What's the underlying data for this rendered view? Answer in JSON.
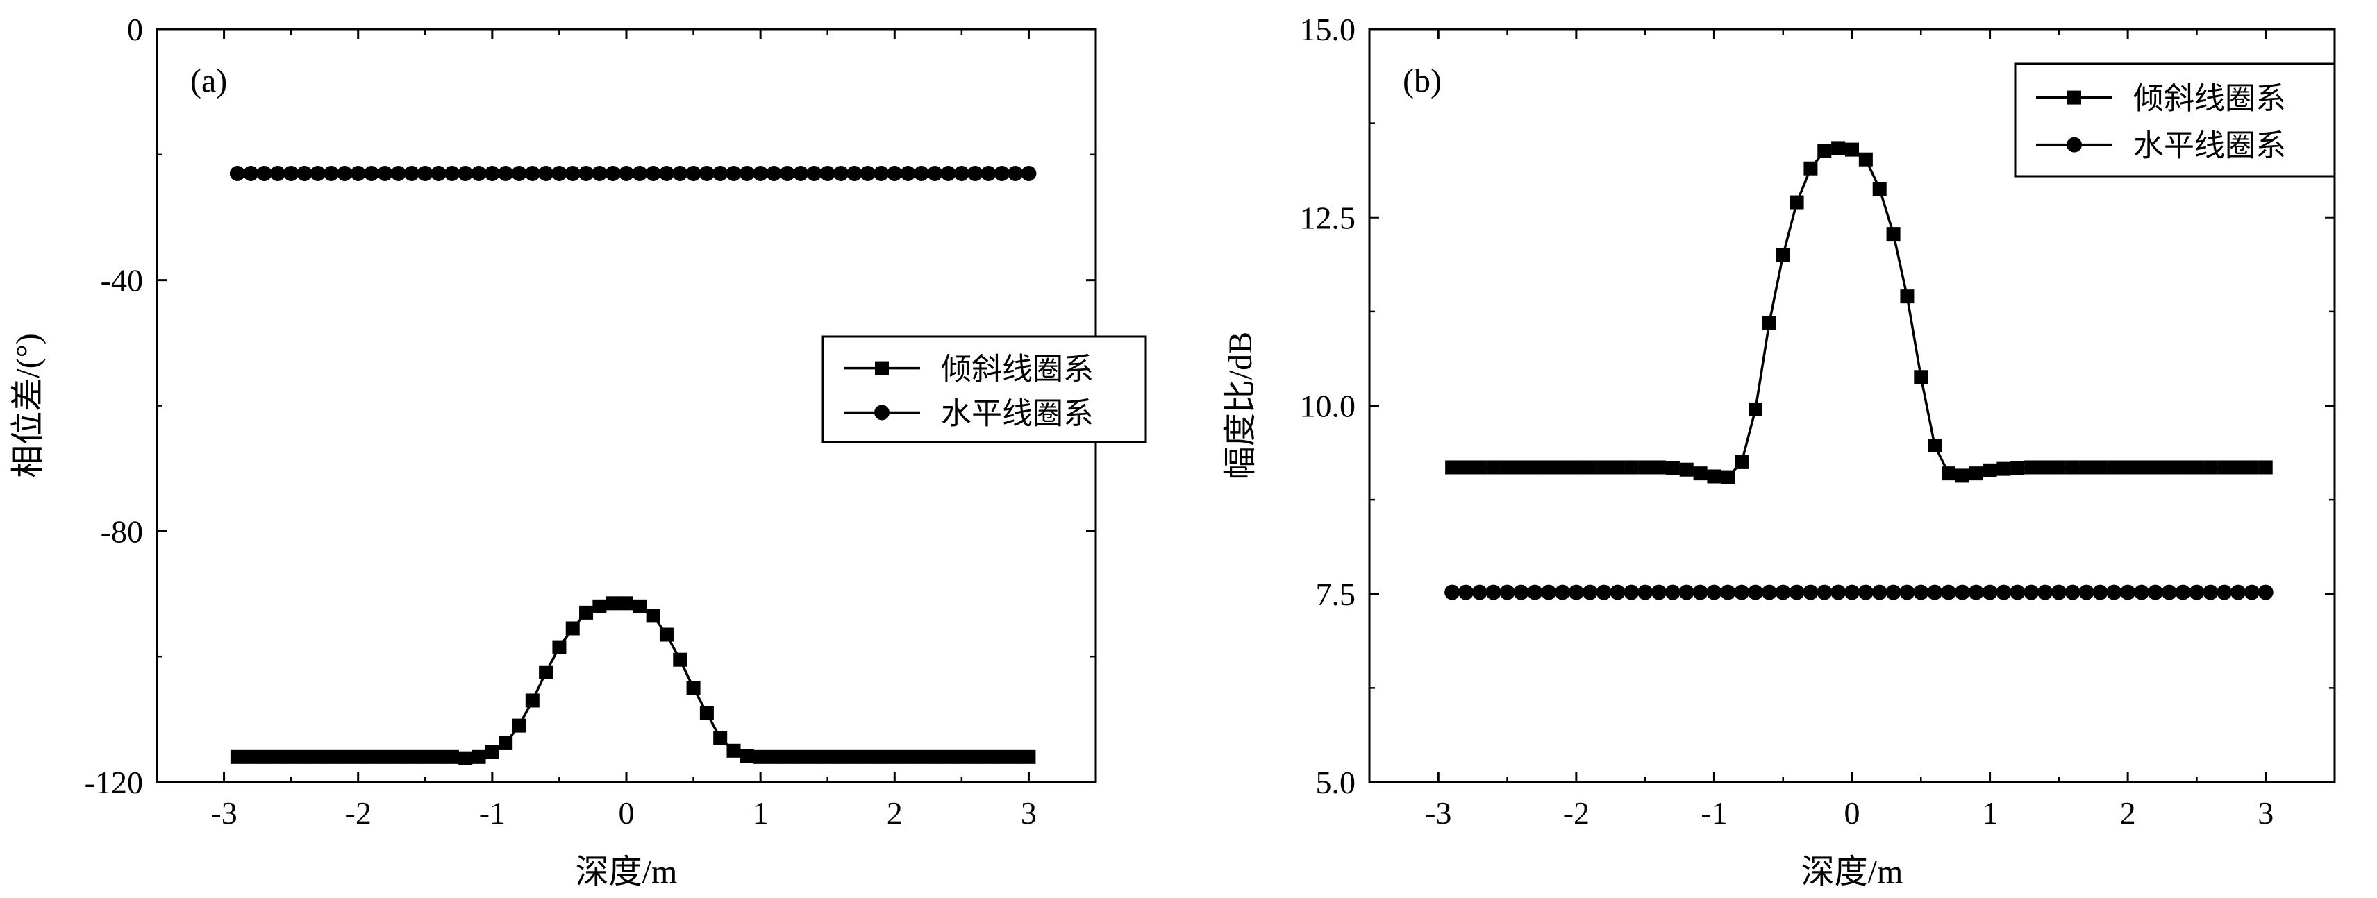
{
  "chart_data": [
    {
      "type": "line",
      "panel_label": "(a)",
      "xlabel": "深度/m",
      "ylabel": "相位差/(°)",
      "xlim": [
        -3.5,
        3.5
      ],
      "ylim": [
        -120,
        0
      ],
      "xticks": [
        -3,
        -2,
        -1,
        0,
        1,
        2,
        3
      ],
      "xtick_labels": [
        "-3",
        "-2",
        "-1",
        "0",
        "1",
        "2",
        "3"
      ],
      "yticks": [
        -120,
        -80,
        -40,
        0
      ],
      "ytick_labels": [
        "-120",
        "-80",
        "-40",
        "0"
      ],
      "grid": false,
      "legend_position": "center-right",
      "series": [
        {
          "name": "倾斜线圈系",
          "marker": "square",
          "points": [
            [
              -2.9,
              -116
            ],
            [
              -2.8,
              -116
            ],
            [
              -2.7,
              -116
            ],
            [
              -2.6,
              -116
            ],
            [
              -2.5,
              -116
            ],
            [
              -2.4,
              -116
            ],
            [
              -2.3,
              -116
            ],
            [
              -2.2,
              -116
            ],
            [
              -2.1,
              -116
            ],
            [
              -2.0,
              -116
            ],
            [
              -1.9,
              -116
            ],
            [
              -1.8,
              -116
            ],
            [
              -1.7,
              -116
            ],
            [
              -1.6,
              -116
            ],
            [
              -1.5,
              -116
            ],
            [
              -1.4,
              -116
            ],
            [
              -1.3,
              -116
            ],
            [
              -1.2,
              -116.2
            ],
            [
              -1.1,
              -116
            ],
            [
              -1.0,
              -115.2
            ],
            [
              -0.9,
              -113.8
            ],
            [
              -0.8,
              -111
            ],
            [
              -0.7,
              -107
            ],
            [
              -0.6,
              -102.5
            ],
            [
              -0.5,
              -98.5
            ],
            [
              -0.4,
              -95.5
            ],
            [
              -0.3,
              -93
            ],
            [
              -0.2,
              -92
            ],
            [
              -0.1,
              -91.5
            ],
            [
              0.0,
              -91.5
            ],
            [
              0.1,
              -92
            ],
            [
              0.2,
              -93.5
            ],
            [
              0.3,
              -96.5
            ],
            [
              0.4,
              -100.5
            ],
            [
              0.5,
              -105
            ],
            [
              0.6,
              -109
            ],
            [
              0.7,
              -113
            ],
            [
              0.8,
              -115
            ],
            [
              0.9,
              -115.8
            ],
            [
              1.0,
              -116
            ],
            [
              1.1,
              -116
            ],
            [
              1.2,
              -116
            ],
            [
              1.3,
              -116
            ],
            [
              1.4,
              -116
            ],
            [
              1.5,
              -116
            ],
            [
              1.6,
              -116
            ],
            [
              1.7,
              -116
            ],
            [
              1.8,
              -116
            ],
            [
              1.9,
              -116
            ],
            [
              2.0,
              -116
            ],
            [
              2.1,
              -116
            ],
            [
              2.2,
              -116
            ],
            [
              2.3,
              -116
            ],
            [
              2.4,
              -116
            ],
            [
              2.5,
              -116
            ],
            [
              2.6,
              -116
            ],
            [
              2.7,
              -116
            ],
            [
              2.8,
              -116
            ],
            [
              2.9,
              -116
            ],
            [
              3.0,
              -116
            ]
          ]
        },
        {
          "name": "水平线圈系",
          "marker": "circle",
          "points": [
            [
              -2.9,
              -23
            ],
            [
              -2.8,
              -23
            ],
            [
              -2.7,
              -23
            ],
            [
              -2.6,
              -23
            ],
            [
              -2.5,
              -23
            ],
            [
              -2.4,
              -23
            ],
            [
              -2.3,
              -23
            ],
            [
              -2.2,
              -23
            ],
            [
              -2.1,
              -23
            ],
            [
              -2.0,
              -23
            ],
            [
              -1.9,
              -23
            ],
            [
              -1.8,
              -23
            ],
            [
              -1.7,
              -23
            ],
            [
              -1.6,
              -23
            ],
            [
              -1.5,
              -23
            ],
            [
              -1.4,
              -23
            ],
            [
              -1.3,
              -23
            ],
            [
              -1.2,
              -23
            ],
            [
              -1.1,
              -23
            ],
            [
              -1.0,
              -23
            ],
            [
              -0.9,
              -23
            ],
            [
              -0.8,
              -23
            ],
            [
              -0.7,
              -23
            ],
            [
              -0.6,
              -23
            ],
            [
              -0.5,
              -23
            ],
            [
              -0.4,
              -23
            ],
            [
              -0.3,
              -23
            ],
            [
              -0.2,
              -23
            ],
            [
              -0.1,
              -23
            ],
            [
              0.0,
              -23
            ],
            [
              0.1,
              -23
            ],
            [
              0.2,
              -23
            ],
            [
              0.3,
              -23
            ],
            [
              0.4,
              -23
            ],
            [
              0.5,
              -23
            ],
            [
              0.6,
              -23
            ],
            [
              0.7,
              -23
            ],
            [
              0.8,
              -23
            ],
            [
              0.9,
              -23
            ],
            [
              1.0,
              -23
            ],
            [
              1.1,
              -23
            ],
            [
              1.2,
              -23
            ],
            [
              1.3,
              -23
            ],
            [
              1.4,
              -23
            ],
            [
              1.5,
              -23
            ],
            [
              1.6,
              -23
            ],
            [
              1.7,
              -23
            ],
            [
              1.8,
              -23
            ],
            [
              1.9,
              -23
            ],
            [
              2.0,
              -23
            ],
            [
              2.1,
              -23
            ],
            [
              2.2,
              -23
            ],
            [
              2.3,
              -23
            ],
            [
              2.4,
              -23
            ],
            [
              2.5,
              -23
            ],
            [
              2.6,
              -23
            ],
            [
              2.7,
              -23
            ],
            [
              2.8,
              -23
            ],
            [
              2.9,
              -23
            ],
            [
              3.0,
              -23
            ]
          ]
        }
      ]
    },
    {
      "type": "line",
      "panel_label": "(b)",
      "xlabel": "深度/m",
      "ylabel": "幅度比/dB",
      "xlim": [
        -3.5,
        3.5
      ],
      "ylim": [
        5.0,
        15.0
      ],
      "xticks": [
        -3,
        -2,
        -1,
        0,
        1,
        2,
        3
      ],
      "xtick_labels": [
        "-3",
        "-2",
        "-1",
        "0",
        "1",
        "2",
        "3"
      ],
      "yticks": [
        5.0,
        7.5,
        10.0,
        12.5,
        15.0
      ],
      "ytick_labels": [
        "5.0",
        "7.5",
        "10.0",
        "12.5",
        "15.0"
      ],
      "grid": false,
      "legend_position": "top-right",
      "series": [
        {
          "name": "倾斜线圈系",
          "marker": "square",
          "points": [
            [
              -2.9,
              9.18
            ],
            [
              -2.8,
              9.18
            ],
            [
              -2.7,
              9.18
            ],
            [
              -2.6,
              9.18
            ],
            [
              -2.5,
              9.18
            ],
            [
              -2.4,
              9.18
            ],
            [
              -2.3,
              9.18
            ],
            [
              -2.2,
              9.18
            ],
            [
              -2.1,
              9.18
            ],
            [
              -2.0,
              9.18
            ],
            [
              -1.9,
              9.18
            ],
            [
              -1.8,
              9.18
            ],
            [
              -1.7,
              9.18
            ],
            [
              -1.6,
              9.18
            ],
            [
              -1.5,
              9.18
            ],
            [
              -1.4,
              9.18
            ],
            [
              -1.3,
              9.17
            ],
            [
              -1.2,
              9.15
            ],
            [
              -1.1,
              9.1
            ],
            [
              -1.0,
              9.06
            ],
            [
              -0.9,
              9.05
            ],
            [
              -0.8,
              9.25
            ],
            [
              -0.7,
              9.95
            ],
            [
              -0.6,
              11.1
            ],
            [
              -0.5,
              12.0
            ],
            [
              -0.4,
              12.7
            ],
            [
              -0.3,
              13.15
            ],
            [
              -0.2,
              13.38
            ],
            [
              -0.1,
              13.42
            ],
            [
              0.0,
              13.4
            ],
            [
              0.1,
              13.27
            ],
            [
              0.2,
              12.88
            ],
            [
              0.3,
              12.28
            ],
            [
              0.4,
              11.45
            ],
            [
              0.5,
              10.38
            ],
            [
              0.6,
              9.47
            ],
            [
              0.7,
              9.1
            ],
            [
              0.8,
              9.07
            ],
            [
              0.9,
              9.1
            ],
            [
              1.0,
              9.14
            ],
            [
              1.1,
              9.16
            ],
            [
              1.2,
              9.17
            ],
            [
              1.3,
              9.18
            ],
            [
              1.4,
              9.18
            ],
            [
              1.5,
              9.18
            ],
            [
              1.6,
              9.18
            ],
            [
              1.7,
              9.18
            ],
            [
              1.8,
              9.18
            ],
            [
              1.9,
              9.18
            ],
            [
              2.0,
              9.18
            ],
            [
              2.1,
              9.18
            ],
            [
              2.2,
              9.18
            ],
            [
              2.3,
              9.18
            ],
            [
              2.4,
              9.18
            ],
            [
              2.5,
              9.18
            ],
            [
              2.6,
              9.18
            ],
            [
              2.7,
              9.18
            ],
            [
              2.8,
              9.18
            ],
            [
              2.9,
              9.18
            ],
            [
              3.0,
              9.18
            ]
          ]
        },
        {
          "name": "水平线圈系",
          "marker": "circle",
          "points": [
            [
              -2.9,
              7.52
            ],
            [
              -2.8,
              7.52
            ],
            [
              -2.7,
              7.52
            ],
            [
              -2.6,
              7.52
            ],
            [
              -2.5,
              7.52
            ],
            [
              -2.4,
              7.52
            ],
            [
              -2.3,
              7.52
            ],
            [
              -2.2,
              7.52
            ],
            [
              -2.1,
              7.52
            ],
            [
              -2.0,
              7.52
            ],
            [
              -1.9,
              7.52
            ],
            [
              -1.8,
              7.52
            ],
            [
              -1.7,
              7.52
            ],
            [
              -1.6,
              7.52
            ],
            [
              -1.5,
              7.52
            ],
            [
              -1.4,
              7.52
            ],
            [
              -1.3,
              7.52
            ],
            [
              -1.2,
              7.52
            ],
            [
              -1.1,
              7.52
            ],
            [
              -1.0,
              7.52
            ],
            [
              -0.9,
              7.52
            ],
            [
              -0.8,
              7.52
            ],
            [
              -0.7,
              7.52
            ],
            [
              -0.6,
              7.52
            ],
            [
              -0.5,
              7.52
            ],
            [
              -0.4,
              7.52
            ],
            [
              -0.3,
              7.52
            ],
            [
              -0.2,
              7.52
            ],
            [
              -0.1,
              7.52
            ],
            [
              0.0,
              7.52
            ],
            [
              0.1,
              7.52
            ],
            [
              0.2,
              7.52
            ],
            [
              0.3,
              7.52
            ],
            [
              0.4,
              7.52
            ],
            [
              0.5,
              7.52
            ],
            [
              0.6,
              7.52
            ],
            [
              0.7,
              7.52
            ],
            [
              0.8,
              7.52
            ],
            [
              0.9,
              7.52
            ],
            [
              1.0,
              7.52
            ],
            [
              1.1,
              7.52
            ],
            [
              1.2,
              7.52
            ],
            [
              1.3,
              7.52
            ],
            [
              1.4,
              7.52
            ],
            [
              1.5,
              7.52
            ],
            [
              1.6,
              7.52
            ],
            [
              1.7,
              7.52
            ],
            [
              1.8,
              7.52
            ],
            [
              1.9,
              7.52
            ],
            [
              2.0,
              7.52
            ],
            [
              2.1,
              7.52
            ],
            [
              2.2,
              7.52
            ],
            [
              2.3,
              7.52
            ],
            [
              2.4,
              7.52
            ],
            [
              2.5,
              7.52
            ],
            [
              2.6,
              7.52
            ],
            [
              2.7,
              7.52
            ],
            [
              2.8,
              7.52
            ],
            [
              2.9,
              7.52
            ],
            [
              3.0,
              7.52
            ]
          ]
        }
      ]
    }
  ]
}
